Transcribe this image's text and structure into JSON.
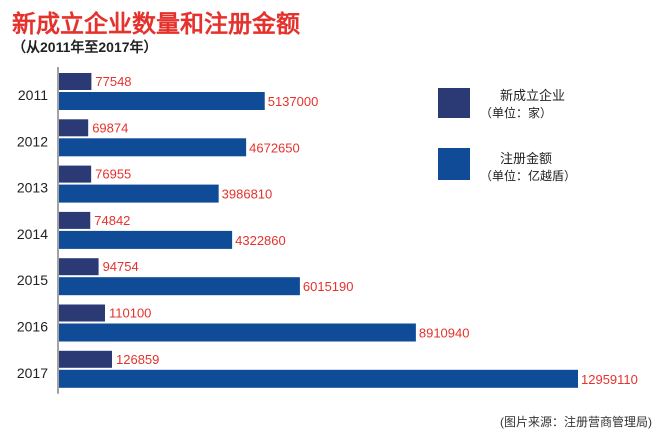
{
  "title": "新成立企业数量和注册金额",
  "subtitle": "（从2011年至2017年）",
  "source": "(图片来源：注册营商管理局)",
  "colors": {
    "companies": "#2b3a75",
    "capital": "#0f4b96",
    "label": "#e5322d"
  },
  "chart_data": {
    "type": "bar",
    "orientation": "horizontal",
    "categories": [
      "2011",
      "2012",
      "2013",
      "2014",
      "2015",
      "2016",
      "2017"
    ],
    "series": [
      {
        "name": "新成立企业",
        "unit": "（单位：家）",
        "values": [
          77548,
          69874,
          76955,
          74842,
          94754,
          110100,
          126859
        ]
      },
      {
        "name": "注册金额",
        "unit": "（单位：亿越盾）",
        "values": [
          5137000,
          4672650,
          3986810,
          4322860,
          6015190,
          8910940,
          12959110
        ]
      }
    ],
    "legend": "right"
  }
}
